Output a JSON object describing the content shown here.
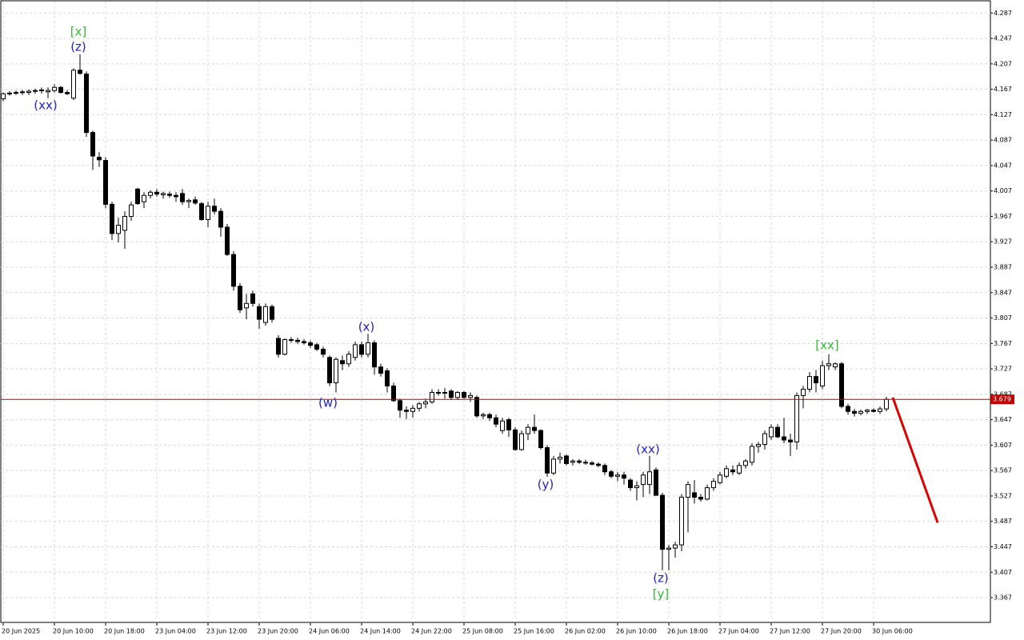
{
  "chart_data": {
    "type": "candlestick",
    "categories": [
      "20 Jun 2025",
      null,
      null,
      null,
      null,
      null,
      null,
      null,
      "20 Jun 10:00",
      null,
      null,
      null,
      null,
      null,
      null,
      null,
      "20 Jun 18:00",
      null,
      null,
      null,
      null,
      null,
      null,
      null,
      "23 Jun 04:00",
      null,
      null,
      null,
      null,
      null,
      null,
      null,
      "23 Jun 12:00",
      null,
      null,
      null,
      null,
      null,
      null,
      null,
      "23 Jun 20:00",
      null,
      null,
      null,
      null,
      null,
      null,
      null,
      "24 Jun 06:00",
      null,
      null,
      null,
      null,
      null,
      null,
      null,
      "24 Jun 14:00",
      null,
      null,
      null,
      null,
      null,
      null,
      null,
      "24 Jun 22:00",
      null,
      null,
      null,
      null,
      null,
      null,
      null,
      "25 Jun 08:00",
      null,
      null,
      null,
      null,
      null,
      null,
      null,
      "25 Jun 16:00",
      null,
      null,
      null,
      null,
      null,
      null,
      null,
      "26 Jun 02:00",
      null,
      null,
      null,
      null,
      null,
      null,
      null,
      "26 Jun 10:00",
      null,
      null,
      null,
      null,
      null,
      null,
      null,
      "26 Jun 18:00",
      null,
      null,
      null,
      null,
      null,
      null,
      null,
      "27 Jun 04:00",
      null,
      null,
      null,
      null,
      null,
      null,
      null,
      "27 Jun 12:00",
      null,
      null,
      null,
      null,
      null,
      null,
      null,
      "27 Jun 20:00",
      null,
      null,
      null,
      null,
      null,
      null,
      null,
      "30 Jun 06:00",
      null,
      null
    ],
    "ohlc": [
      [
        4.152,
        4.162,
        4.148,
        4.16
      ],
      [
        4.16,
        4.164,
        4.157,
        4.161
      ],
      [
        4.161,
        4.165,
        4.158,
        4.162
      ],
      [
        4.162,
        4.166,
        4.158,
        4.163
      ],
      [
        4.162,
        4.167,
        4.158,
        4.164
      ],
      [
        4.164,
        4.168,
        4.16,
        4.165
      ],
      [
        4.165,
        4.17,
        4.16,
        4.166
      ],
      [
        4.163,
        4.17,
        4.153,
        4.165
      ],
      [
        4.165,
        4.175,
        4.162,
        4.17
      ],
      [
        4.17,
        4.172,
        4.16,
        4.162
      ],
      [
        4.162,
        4.166,
        4.158,
        4.16
      ],
      [
        4.153,
        4.2,
        4.15,
        4.197
      ],
      [
        4.197,
        4.222,
        4.19,
        4.192
      ],
      [
        4.191,
        4.195,
        4.092,
        4.099
      ],
      [
        4.099,
        4.102,
        4.04,
        4.062
      ],
      [
        4.06,
        4.068,
        4.045,
        4.056
      ],
      [
        4.055,
        4.06,
        3.98,
        3.986
      ],
      [
        3.986,
        3.99,
        3.93,
        3.94
      ],
      [
        3.94,
        3.965,
        3.926,
        3.953
      ],
      [
        3.945,
        3.975,
        3.916,
        3.967
      ],
      [
        3.967,
        3.99,
        3.96,
        3.985
      ],
      [
        4.01,
        4.012,
        3.985,
        3.987
      ],
      [
        3.99,
        4.005,
        3.98,
        4.0
      ],
      [
        4.0,
        4.008,
        3.995,
        4.005
      ],
      [
        4.005,
        4.01,
        3.998,
        4.002
      ],
      [
        4.001,
        4.006,
        3.995,
        4.003
      ],
      [
        4.002,
        4.006,
        3.996,
        4.0
      ],
      [
        4.0,
        4.005,
        3.99,
        3.998
      ],
      [
        4.003,
        4.01,
        3.985,
        3.99
      ],
      [
        3.99,
        3.995,
        3.98,
        3.992
      ],
      [
        3.993,
        3.998,
        3.985,
        3.988
      ],
      [
        3.987,
        3.99,
        3.96,
        3.962
      ],
      [
        3.962,
        3.99,
        3.95,
        3.983
      ],
      [
        3.983,
        3.995,
        3.97,
        3.975
      ],
      [
        3.975,
        3.98,
        3.935,
        3.95
      ],
      [
        3.95,
        3.955,
        3.905,
        3.907
      ],
      [
        3.907,
        3.912,
        3.85,
        3.857
      ],
      [
        3.857,
        3.862,
        3.815,
        3.82
      ],
      [
        3.823,
        3.845,
        3.805,
        3.83
      ],
      [
        3.845,
        3.85,
        3.825,
        3.83
      ],
      [
        3.825,
        3.83,
        3.79,
        3.805
      ],
      [
        3.8,
        3.83,
        3.795,
        3.825
      ],
      [
        3.825,
        3.828,
        3.8,
        3.805
      ],
      [
        3.775,
        3.78,
        3.745,
        3.75
      ],
      [
        3.75,
        3.775,
        3.748,
        3.773
      ],
      [
        3.773,
        3.777,
        3.768,
        3.772
      ],
      [
        3.772,
        3.776,
        3.766,
        3.77
      ],
      [
        3.77,
        3.774,
        3.765,
        3.768
      ],
      [
        3.768,
        3.772,
        3.76,
        3.764
      ],
      [
        3.765,
        3.768,
        3.755,
        3.758
      ],
      [
        3.758,
        3.762,
        3.745,
        3.75
      ],
      [
        3.745,
        3.748,
        3.7,
        3.705
      ],
      [
        3.705,
        3.745,
        3.69,
        3.742
      ],
      [
        3.74,
        3.748,
        3.725,
        3.735
      ],
      [
        3.735,
        3.755,
        3.73,
        3.75
      ],
      [
        3.745,
        3.77,
        3.74,
        3.765
      ],
      [
        3.765,
        3.77,
        3.745,
        3.75
      ],
      [
        3.75,
        3.782,
        3.745,
        3.768
      ],
      [
        3.768,
        3.772,
        3.718,
        3.73
      ],
      [
        3.73,
        3.735,
        3.715,
        3.72
      ],
      [
        3.724,
        3.728,
        3.69,
        3.7
      ],
      [
        3.7,
        3.705,
        3.675,
        3.677
      ],
      [
        3.677,
        3.68,
        3.65,
        3.662
      ],
      [
        3.662,
        3.668,
        3.648,
        3.66
      ],
      [
        3.66,
        3.67,
        3.65,
        3.665
      ],
      [
        3.665,
        3.675,
        3.66,
        3.672
      ],
      [
        3.672,
        3.68,
        3.665,
        3.675
      ],
      [
        3.675,
        3.695,
        3.672,
        3.69
      ],
      [
        3.69,
        3.695,
        3.685,
        3.689
      ],
      [
        3.689,
        3.697,
        3.68,
        3.69
      ],
      [
        3.692,
        3.695,
        3.678,
        3.682
      ],
      [
        3.682,
        3.692,
        3.678,
        3.69
      ],
      [
        3.69,
        3.692,
        3.68,
        3.682
      ],
      [
        3.682,
        3.69,
        3.675,
        3.685
      ],
      [
        3.682,
        3.685,
        3.65,
        3.653
      ],
      [
        3.653,
        3.658,
        3.648,
        3.655
      ],
      [
        3.655,
        3.658,
        3.645,
        3.65
      ],
      [
        3.65,
        3.655,
        3.635,
        3.64
      ],
      [
        3.63,
        3.65,
        3.625,
        3.645
      ],
      [
        3.647,
        3.65,
        3.62,
        3.631
      ],
      [
        3.631,
        3.635,
        3.598,
        3.6
      ],
      [
        3.6,
        3.63,
        3.598,
        3.625
      ],
      [
        3.625,
        3.64,
        3.615,
        3.635
      ],
      [
        3.635,
        3.655,
        3.625,
        3.63
      ],
      [
        3.63,
        3.632,
        3.6,
        3.603
      ],
      [
        3.603,
        3.607,
        3.557,
        3.563
      ],
      [
        3.563,
        3.59,
        3.56,
        3.585
      ],
      [
        3.585,
        3.595,
        3.578,
        3.588
      ],
      [
        3.59,
        3.592,
        3.575,
        3.578
      ],
      [
        3.58,
        3.585,
        3.575,
        3.582
      ],
      [
        3.582,
        3.585,
        3.577,
        3.58
      ],
      [
        3.58,
        3.584,
        3.576,
        3.579
      ],
      [
        3.579,
        3.582,
        3.575,
        3.577
      ],
      [
        3.577,
        3.58,
        3.572,
        3.575
      ],
      [
        3.575,
        3.578,
        3.56,
        3.565
      ],
      [
        3.565,
        3.568,
        3.555,
        3.558
      ],
      [
        3.558,
        3.565,
        3.55,
        3.56
      ],
      [
        3.56,
        3.565,
        3.545,
        3.555
      ],
      [
        3.552,
        3.555,
        3.535,
        3.54
      ],
      [
        3.54,
        3.55,
        3.52,
        3.543
      ],
      [
        3.545,
        3.565,
        3.525,
        3.56
      ],
      [
        3.545,
        3.59,
        3.53,
        3.565
      ],
      [
        3.568,
        3.572,
        3.528,
        3.528
      ],
      [
        3.528,
        3.532,
        3.41,
        3.443
      ],
      [
        3.443,
        3.45,
        3.41,
        3.445
      ],
      [
        3.445,
        3.455,
        3.43,
        3.45
      ],
      [
        3.45,
        3.53,
        3.44,
        3.525
      ],
      [
        3.525,
        3.55,
        3.47,
        3.545
      ],
      [
        3.532,
        3.552,
        3.515,
        3.525
      ],
      [
        3.525,
        3.53,
        3.518,
        3.522
      ],
      [
        3.522,
        3.545,
        3.52,
        3.54
      ],
      [
        3.54,
        3.555,
        3.535,
        3.55
      ],
      [
        3.548,
        3.565,
        3.545,
        3.56
      ],
      [
        3.558,
        3.575,
        3.555,
        3.57
      ],
      [
        3.568,
        3.575,
        3.56,
        3.565
      ],
      [
        3.563,
        3.58,
        3.56,
        3.575
      ],
      [
        3.575,
        3.585,
        3.57,
        3.582
      ],
      [
        3.58,
        3.61,
        3.575,
        3.605
      ],
      [
        3.605,
        3.612,
        3.595,
        3.608
      ],
      [
        3.608,
        3.63,
        3.6,
        3.625
      ],
      [
        3.62,
        3.64,
        3.615,
        3.635
      ],
      [
        3.635,
        3.64,
        3.618,
        3.62
      ],
      [
        3.62,
        3.65,
        3.61,
        3.615
      ],
      [
        3.615,
        3.625,
        3.59,
        3.612
      ],
      [
        3.612,
        3.69,
        3.6,
        3.685
      ],
      [
        3.685,
        3.7,
        3.665,
        3.695
      ],
      [
        3.695,
        3.722,
        3.69,
        3.715
      ],
      [
        3.715,
        3.725,
        3.69,
        3.705
      ],
      [
        3.7,
        3.74,
        3.695,
        3.732
      ],
      [
        3.732,
        3.75,
        3.725,
        3.735
      ],
      [
        3.73,
        3.737,
        3.725,
        3.735
      ],
      [
        3.735,
        3.738,
        3.665,
        3.668
      ],
      [
        3.668,
        3.672,
        3.655,
        3.66
      ],
      [
        3.66,
        3.664,
        3.652,
        3.657
      ],
      [
        3.657,
        3.663,
        3.654,
        3.66
      ],
      [
        3.66,
        3.664,
        3.656,
        3.662
      ],
      [
        3.662,
        3.665,
        3.658,
        3.66
      ],
      [
        3.66,
        3.668,
        3.656,
        3.664
      ],
      [
        3.664,
        3.683,
        3.66,
        3.679
      ]
    ],
    "ylim": [
      3.328,
      4.305
    ],
    "yticks": [
      4.287,
      4.247,
      4.207,
      4.167,
      4.127,
      4.087,
      4.047,
      4.007,
      3.967,
      3.927,
      3.887,
      3.847,
      3.807,
      3.767,
      3.727,
      3.687,
      3.647,
      3.607,
      3.567,
      3.527,
      3.487,
      3.447,
      3.407,
      3.367
    ],
    "grid": true,
    "last_price": 3.679,
    "last_price_color": "#c00000",
    "forecast": {
      "x": [
        139,
        146
      ],
      "values": [
        3.682,
        3.485
      ],
      "color": "#e00000"
    },
    "annotations": [
      {
        "text": "[x]",
        "color": "#33bb33"
      },
      {
        "text": "(z)",
        "color": "#2222cc"
      },
      {
        "text": "(xx)",
        "color": "#2222cc"
      },
      {
        "text": "(x)",
        "color": "#2222cc"
      },
      {
        "text": "(w)",
        "color": "#2222cc"
      },
      {
        "text": "(y)",
        "color": "#2222cc"
      },
      {
        "text": "(xx)",
        "color": "#2222cc"
      },
      {
        "text": "(z)",
        "color": "#2222cc"
      },
      {
        "text": "[y]",
        "color": "#33bb33"
      },
      {
        "text": "[xx]",
        "color": "#33bb33"
      }
    ]
  }
}
